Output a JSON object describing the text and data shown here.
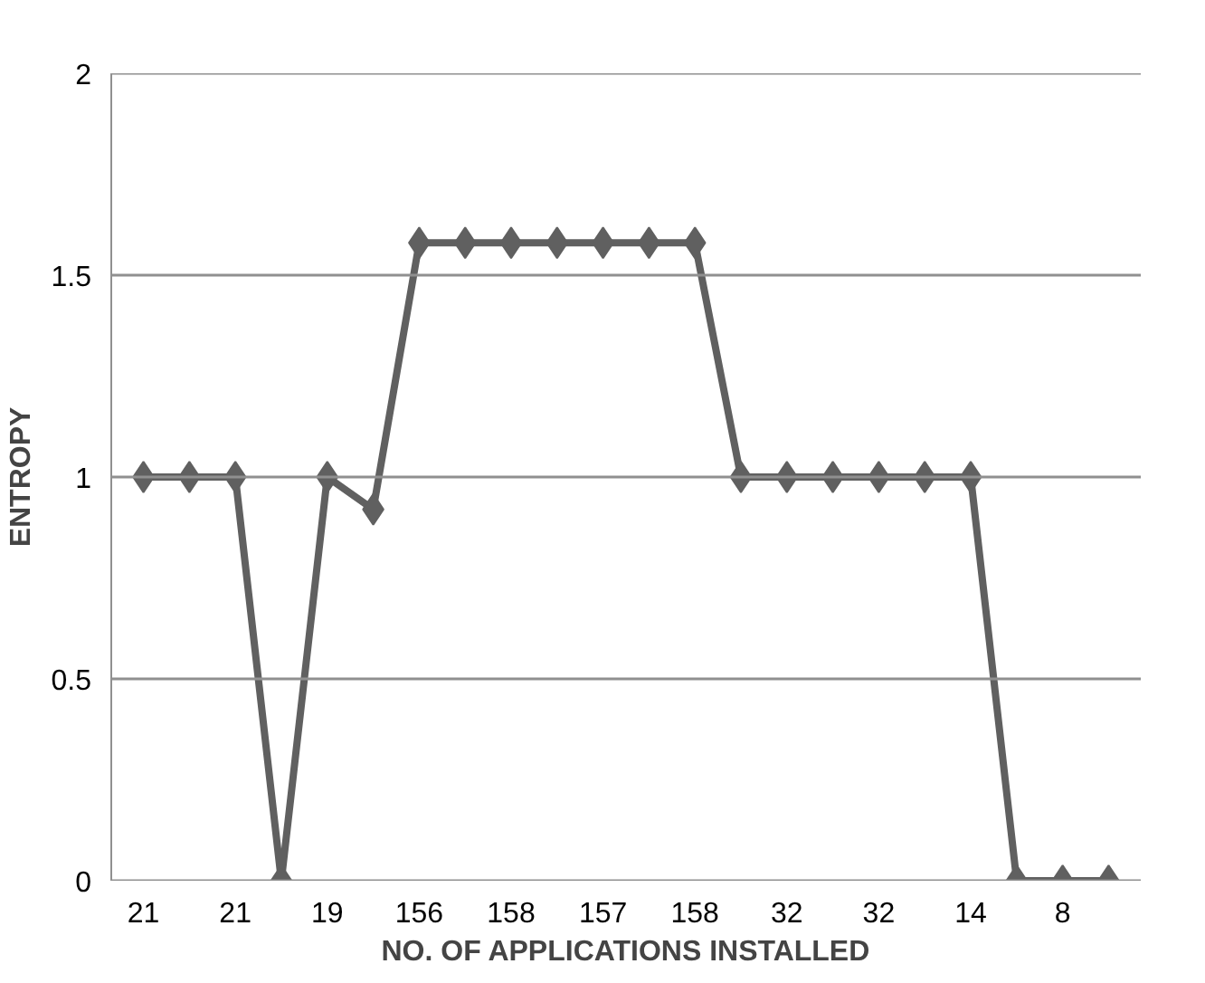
{
  "chart_data": {
    "type": "line",
    "xlabel": "NO. OF APPLICATIONS INSTALLED",
    "ylabel": "ENTROPY",
    "categories": [
      "21",
      null,
      "21",
      null,
      "19",
      null,
      "156",
      null,
      "158",
      null,
      "157",
      null,
      "158",
      null,
      "32",
      null,
      "32",
      null,
      "14",
      null,
      "8",
      null
    ],
    "series": [
      {
        "color": "#606060",
        "values": [
          1,
          1,
          1,
          0,
          1,
          0.92,
          1.58,
          1.58,
          1.58,
          1.58,
          1.58,
          1.58,
          1.58,
          1,
          1,
          1,
          1,
          1,
          1,
          0,
          0,
          0
        ]
      }
    ],
    "ylim": [
      0,
      2
    ],
    "yticks": [
      0,
      0.5,
      1,
      1.5,
      2
    ],
    "grid": "y",
    "marker": "diamond"
  }
}
